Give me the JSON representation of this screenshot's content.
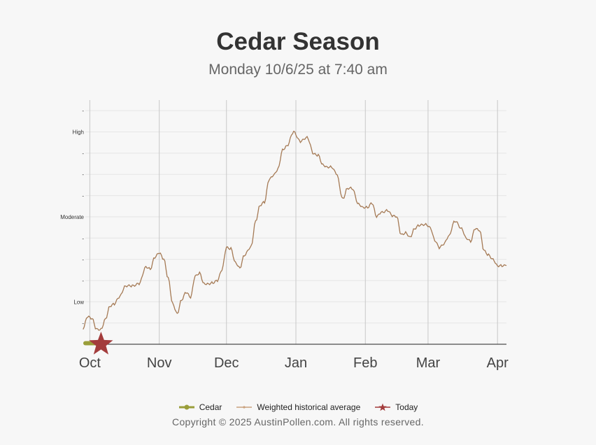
{
  "header": {
    "title": "Cedar Season",
    "subtitle": "Monday 10/6/25 at 7:40 am"
  },
  "colors": {
    "cedar": "#9a9e3a",
    "historical": "#a57a55",
    "today": "#a33c3c",
    "grid": "#e6e6e6",
    "month_line": "#c8c8c8"
  },
  "chart_data": {
    "type": "line",
    "x_type": "date",
    "xlim": [
      "2025-09-29",
      "2026-04-05"
    ],
    "ylim": [
      0,
      11.5
    ],
    "month_ticks": [
      {
        "date": "2025-10-01",
        "label": "Oct"
      },
      {
        "date": "2025-11-01",
        "label": "Nov"
      },
      {
        "date": "2025-12-01",
        "label": "Dec"
      },
      {
        "date": "2026-01-01",
        "label": "Jan"
      },
      {
        "date": "2026-02-01",
        "label": "Feb"
      },
      {
        "date": "2026-03-01",
        "label": "Mar"
      },
      {
        "date": "2026-04-01",
        "label": "Apr"
      }
    ],
    "y_ticks": [
      {
        "value": 1,
        "label": "-"
      },
      {
        "value": 2,
        "label": "Low"
      },
      {
        "value": 3,
        "label": "-"
      },
      {
        "value": 4,
        "label": "-"
      },
      {
        "value": 5,
        "label": "-"
      },
      {
        "value": 6,
        "label": "Moderate"
      },
      {
        "value": 7,
        "label": "-"
      },
      {
        "value": 8,
        "label": "-"
      },
      {
        "value": 9,
        "label": "-"
      },
      {
        "value": 10,
        "label": "High"
      },
      {
        "value": 11,
        "label": "-"
      }
    ],
    "series": [
      {
        "name": "Cedar",
        "points": [
          [
            "2025-09-29",
            0.05
          ],
          [
            "2025-10-06",
            0.05
          ]
        ]
      },
      {
        "name": "Weighted historical average",
        "points": [
          [
            "2025-09-28",
            0.75
          ],
          [
            "2025-09-30",
            1.3
          ],
          [
            "2025-10-02",
            1.2
          ],
          [
            "2025-10-04",
            0.7
          ],
          [
            "2025-10-06",
            0.7
          ],
          [
            "2025-10-08",
            1.2
          ],
          [
            "2025-10-10",
            1.8
          ],
          [
            "2025-10-12",
            1.9
          ],
          [
            "2025-10-14",
            2.2
          ],
          [
            "2025-10-17",
            2.75
          ],
          [
            "2025-10-20",
            2.75
          ],
          [
            "2025-10-23",
            2.85
          ],
          [
            "2025-10-26",
            3.65
          ],
          [
            "2025-10-28",
            3.55
          ],
          [
            "2025-10-30",
            4.1
          ],
          [
            "2025-11-01",
            4.3
          ],
          [
            "2025-11-03",
            4.0
          ],
          [
            "2025-11-05",
            3.1
          ],
          [
            "2025-11-07",
            1.9
          ],
          [
            "2025-11-09",
            1.45
          ],
          [
            "2025-11-11",
            2.1
          ],
          [
            "2025-11-13",
            2.45
          ],
          [
            "2025-11-15",
            2.2
          ],
          [
            "2025-11-17",
            3.2
          ],
          [
            "2025-11-19",
            3.35
          ],
          [
            "2025-11-21",
            2.85
          ],
          [
            "2025-11-23",
            2.85
          ],
          [
            "2025-11-25",
            2.9
          ],
          [
            "2025-11-27",
            3.0
          ],
          [
            "2025-11-29",
            3.5
          ],
          [
            "2025-12-01",
            4.55
          ],
          [
            "2025-12-03",
            4.5
          ],
          [
            "2025-12-05",
            3.85
          ],
          [
            "2025-12-07",
            3.6
          ],
          [
            "2025-12-09",
            4.2
          ],
          [
            "2025-12-12",
            4.6
          ],
          [
            "2025-12-14",
            5.8
          ],
          [
            "2025-12-16",
            6.55
          ],
          [
            "2025-12-18",
            6.7
          ],
          [
            "2025-12-20",
            7.75
          ],
          [
            "2025-12-22",
            7.95
          ],
          [
            "2025-12-24",
            8.25
          ],
          [
            "2025-12-26",
            9.15
          ],
          [
            "2025-12-28",
            9.35
          ],
          [
            "2025-12-31",
            10.0
          ],
          [
            "2026-01-03",
            9.55
          ],
          [
            "2026-01-06",
            9.75
          ],
          [
            "2026-01-09",
            8.95
          ],
          [
            "2026-01-11",
            8.9
          ],
          [
            "2026-01-13",
            8.45
          ],
          [
            "2026-01-15",
            8.35
          ],
          [
            "2026-01-17",
            8.35
          ],
          [
            "2026-01-19",
            8.05
          ],
          [
            "2026-01-22",
            6.85
          ],
          [
            "2026-01-24",
            7.35
          ],
          [
            "2026-01-26",
            7.35
          ],
          [
            "2026-01-29",
            6.6
          ],
          [
            "2026-01-31",
            6.45
          ],
          [
            "2026-02-02",
            6.45
          ],
          [
            "2026-02-04",
            6.65
          ],
          [
            "2026-02-06",
            6.0
          ],
          [
            "2026-02-08",
            6.2
          ],
          [
            "2026-02-11",
            6.3
          ],
          [
            "2026-02-13",
            6.05
          ],
          [
            "2026-02-15",
            6.0
          ],
          [
            "2026-02-17",
            5.15
          ],
          [
            "2026-02-19",
            5.25
          ],
          [
            "2026-02-21",
            5.05
          ],
          [
            "2026-02-23",
            5.45
          ],
          [
            "2026-02-25",
            5.6
          ],
          [
            "2026-02-28",
            5.65
          ],
          [
            "2026-03-02",
            5.5
          ],
          [
            "2026-03-04",
            4.9
          ],
          [
            "2026-03-06",
            4.55
          ],
          [
            "2026-03-08",
            4.7
          ],
          [
            "2026-03-10",
            5.05
          ],
          [
            "2026-03-13",
            5.8
          ],
          [
            "2026-03-16",
            5.45
          ],
          [
            "2026-03-18",
            5.0
          ],
          [
            "2026-03-20",
            4.85
          ],
          [
            "2026-03-22",
            5.45
          ],
          [
            "2026-03-24",
            5.35
          ],
          [
            "2026-03-26",
            4.4
          ],
          [
            "2026-03-28",
            4.2
          ],
          [
            "2026-03-30",
            4.0
          ],
          [
            "2026-04-01",
            3.7
          ],
          [
            "2026-04-03",
            3.7
          ],
          [
            "2026-04-05",
            3.7
          ]
        ]
      }
    ],
    "today": {
      "date": "2025-10-06",
      "value": 0
    },
    "grid": true,
    "legend_position": "bottom-center"
  },
  "legend": {
    "items": [
      {
        "label": "Cedar"
      },
      {
        "label": "Weighted historical average"
      },
      {
        "label": "Today"
      }
    ]
  },
  "footer": {
    "copyright": "Copyright © 2025 AustinPollen.com.  All rights reserved."
  }
}
